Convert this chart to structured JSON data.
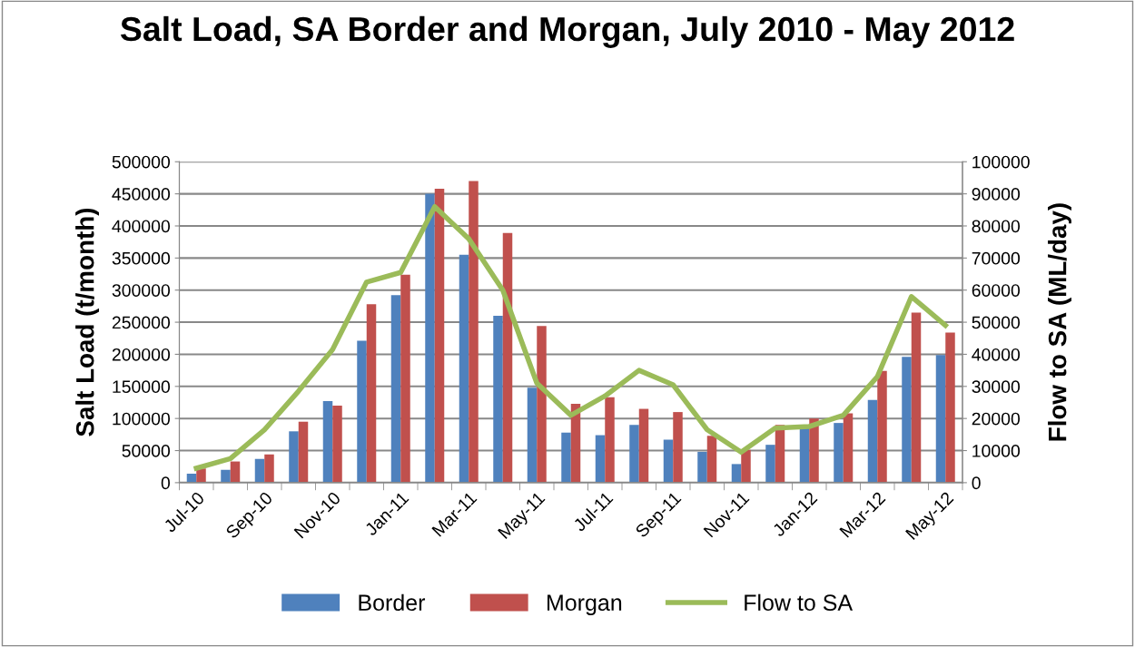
{
  "chart_data": {
    "type": "bar",
    "title": "Salt Load, SA Border and Morgan, July 2010 - May 2012",
    "ylabel": "Salt Load (t/month)",
    "y2label": "Flow to SA (ML/day)",
    "categories": [
      "Jul-10",
      null,
      "Sep-10",
      null,
      "Nov-10",
      null,
      "Jan-11",
      null,
      "Mar-11",
      null,
      "May-11",
      null,
      "Jul-11",
      null,
      "Sep-11",
      null,
      "Nov-11",
      null,
      "Jan-12",
      null,
      "Mar-12",
      null,
      "May-12"
    ],
    "series": [
      {
        "name": "Border",
        "color": "#4f81bd",
        "values": [
          14000,
          20000,
          37000,
          80000,
          127000,
          221000,
          292000,
          450000,
          355000,
          260000,
          148000,
          78000,
          74000,
          90000,
          67000,
          48000,
          29000,
          59000,
          87000,
          93000,
          129000,
          196000,
          199000
        ]
      },
      {
        "name": "Morgan",
        "color": "#c0504d",
        "values": [
          22000,
          33000,
          44000,
          95000,
          120000,
          278000,
          324000,
          458000,
          470000,
          389000,
          244000,
          123000,
          133000,
          115000,
          110000,
          73000,
          51000,
          90000,
          100000,
          108000,
          174000,
          265000,
          234000
        ]
      },
      {
        "name": "Flow to SA",
        "type": "line",
        "axis": "y2",
        "color": "#9bbb59",
        "values": [
          4500,
          7500,
          16500,
          28500,
          41500,
          62500,
          65500,
          86000,
          76000,
          60000,
          31000,
          21000,
          27000,
          35000,
          30500,
          16500,
          9500,
          17000,
          17500,
          21000,
          33000,
          58000,
          49000
        ]
      }
    ],
    "ylim": [
      0,
      500000
    ],
    "yticks": [
      0,
      50000,
      100000,
      150000,
      200000,
      250000,
      300000,
      350000,
      400000,
      450000,
      500000
    ],
    "y2lim": [
      0,
      100000
    ],
    "y2ticks": [
      0,
      10000,
      20000,
      30000,
      40000,
      50000,
      60000,
      70000,
      80000,
      90000,
      100000
    ],
    "grid": "y",
    "legend": "bottom",
    "marker": "none"
  }
}
